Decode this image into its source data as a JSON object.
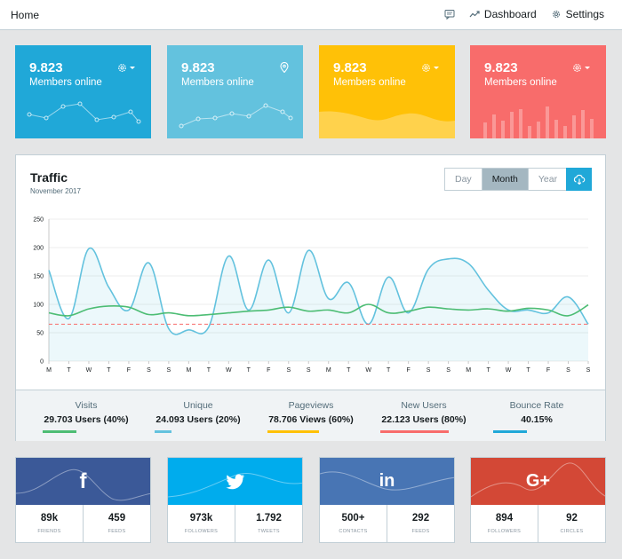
{
  "topbar": {
    "home": "Home",
    "dashboard": "Dashboard",
    "settings": "Settings"
  },
  "tiles": [
    {
      "value": "9.823",
      "label": "Members online",
      "color": "#20a8d8",
      "tool": "gear-dropdown"
    },
    {
      "value": "9.823",
      "label": "Members online",
      "color": "#63c2de",
      "tool": "location-pin"
    },
    {
      "value": "9.823",
      "label": "Members online",
      "color": "#ffc107",
      "tool": "gear-dropdown"
    },
    {
      "value": "9.823",
      "label": "Members online",
      "color": "#f86c6b",
      "tool": "gear-dropdown"
    }
  ],
  "traffic": {
    "title": "Traffic",
    "subtitle": "November 2017",
    "range": [
      "Day",
      "Month",
      "Year"
    ],
    "active_range": "Month"
  },
  "chart_data": {
    "type": "line",
    "categories": [
      "M",
      "T",
      "W",
      "T",
      "F",
      "S",
      "S",
      "M",
      "T",
      "W",
      "T",
      "F",
      "S",
      "S",
      "M",
      "T",
      "W",
      "T",
      "F",
      "S",
      "S",
      "M",
      "T",
      "W",
      "T",
      "F",
      "S",
      "S"
    ],
    "yticks": [
      0,
      50,
      100,
      150,
      200,
      250
    ],
    "ylim": [
      0,
      250
    ],
    "series": [
      {
        "color": "#63c2de",
        "fill": true,
        "values": [
          160,
          75,
          198,
          130,
          90,
          173,
          57,
          55,
          60,
          185,
          90,
          178,
          85,
          195,
          110,
          138,
          65,
          148,
          85,
          162,
          180,
          172,
          125,
          90,
          90,
          85,
          113,
          65
        ]
      },
      {
        "color": "#4dbd74",
        "fill": false,
        "values": [
          85,
          80,
          92,
          97,
          95,
          82,
          85,
          80,
          82,
          85,
          88,
          90,
          95,
          88,
          90,
          85,
          100,
          85,
          88,
          95,
          92,
          90,
          92,
          88,
          93,
          90,
          80,
          99
        ]
      },
      {
        "color": "#f86c6b",
        "fill": false,
        "dashed": true,
        "values": [
          65,
          65,
          65,
          65,
          65,
          65,
          65,
          65,
          65,
          65,
          65,
          65,
          65,
          65,
          65,
          65,
          65,
          65,
          65,
          65,
          65,
          65,
          65,
          65,
          65,
          65,
          65,
          65
        ]
      }
    ]
  },
  "stats": [
    {
      "title": "Visits",
      "value": "29.703 Users (40%)",
      "color": "#4dbd74"
    },
    {
      "title": "Unique",
      "value": "24.093 Users (20%)",
      "color": "#63c2de"
    },
    {
      "title": "Pageviews",
      "value": "78.706 Views (60%)",
      "color": "#ffc107"
    },
    {
      "title": "New Users",
      "value": "22.123 Users (80%)",
      "color": "#f86c6b"
    },
    {
      "title": "Bounce Rate",
      "value": "40.15%",
      "color": "#20a8d8"
    }
  ],
  "social": [
    {
      "network": "facebook",
      "logo": "f",
      "color": "#3b5998",
      "stats": [
        {
          "value": "89k",
          "label": "FRIENDS"
        },
        {
          "value": "459",
          "label": "FEEDS"
        }
      ]
    },
    {
      "network": "twitter",
      "logo": "",
      "color": "#00aced",
      "stats": [
        {
          "value": "973k",
          "label": "FOLLOWERS"
        },
        {
          "value": "1.792",
          "label": "TWEETS"
        }
      ]
    },
    {
      "network": "linkedin",
      "logo": "in",
      "color": "#4875b4",
      "stats": [
        {
          "value": "500+",
          "label": "CONTACTS"
        },
        {
          "value": "292",
          "label": "FEEDS"
        }
      ]
    },
    {
      "network": "google-plus",
      "logo": "G+",
      "color": "#d34836",
      "stats": [
        {
          "value": "894",
          "label": "FOLLOWERS"
        },
        {
          "value": "92",
          "label": "CIRCLES"
        }
      ]
    }
  ]
}
